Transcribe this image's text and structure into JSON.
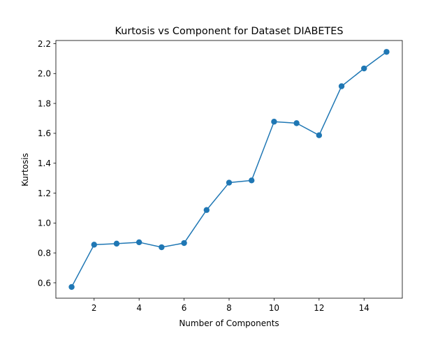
{
  "chart_data": {
    "type": "line",
    "title": "Kurtosis vs Component for Dataset DIABETES",
    "xlabel": "Number of Components",
    "ylabel": "Kurtosis",
    "xlim": [
      0.3,
      15.7
    ],
    "ylim": [
      0.497,
      2.221
    ],
    "xticks": [
      2,
      4,
      6,
      8,
      10,
      12,
      14
    ],
    "yticks": [
      0.6,
      0.8,
      1.0,
      1.2,
      1.4,
      1.6,
      1.8,
      2.0,
      2.2
    ],
    "xtick_labels": [
      "2",
      "4",
      "6",
      "8",
      "10",
      "12",
      "14"
    ],
    "ytick_labels": [
      "0.6",
      "0.8",
      "1.0",
      "1.2",
      "1.4",
      "1.6",
      "1.8",
      "2.0",
      "2.2"
    ],
    "grid": false,
    "series": [
      {
        "color": "#1f77b4",
        "marker": "circle",
        "x": [
          1,
          2,
          3,
          4,
          5,
          6,
          7,
          8,
          9,
          10,
          11,
          12,
          13,
          14,
          15
        ],
        "y": [
          0.572,
          0.855,
          0.862,
          0.871,
          0.838,
          0.866,
          1.087,
          1.27,
          1.285,
          1.678,
          1.668,
          1.587,
          1.915,
          2.034,
          2.145
        ]
      }
    ]
  }
}
